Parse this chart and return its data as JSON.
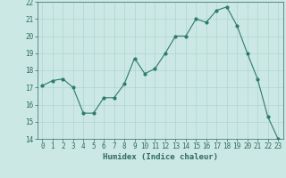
{
  "x": [
    0,
    1,
    2,
    3,
    4,
    5,
    6,
    7,
    8,
    9,
    10,
    11,
    12,
    13,
    14,
    15,
    16,
    17,
    18,
    19,
    20,
    21,
    22,
    23
  ],
  "y": [
    17.1,
    17.4,
    17.5,
    17.0,
    15.5,
    15.5,
    16.4,
    16.4,
    17.2,
    18.7,
    17.8,
    18.1,
    19.0,
    20.0,
    20.0,
    21.0,
    20.8,
    21.5,
    21.7,
    20.6,
    19.0,
    17.5,
    15.3,
    14.0
  ],
  "line_color": "#2d7a6e",
  "marker_color": "#2d7a6e",
  "bg_color": "#cce8e4",
  "grid_color": "#afd4d0",
  "xlabel": "Humidex (Indice chaleur)",
  "ylabel": "",
  "ylim": [
    14,
    22
  ],
  "xlim_min": -0.5,
  "xlim_max": 23.5,
  "yticks": [
    14,
    15,
    16,
    17,
    18,
    19,
    20,
    21,
    22
  ],
  "xticks": [
    0,
    1,
    2,
    3,
    4,
    5,
    6,
    7,
    8,
    9,
    10,
    11,
    12,
    13,
    14,
    15,
    16,
    17,
    18,
    19,
    20,
    21,
    22,
    23
  ],
  "tick_label_fontsize": 5.5,
  "xlabel_fontsize": 6.5,
  "tick_color": "#2d6b60",
  "axis_color": "#2d6b60",
  "linewidth": 0.8,
  "markersize": 2.0
}
